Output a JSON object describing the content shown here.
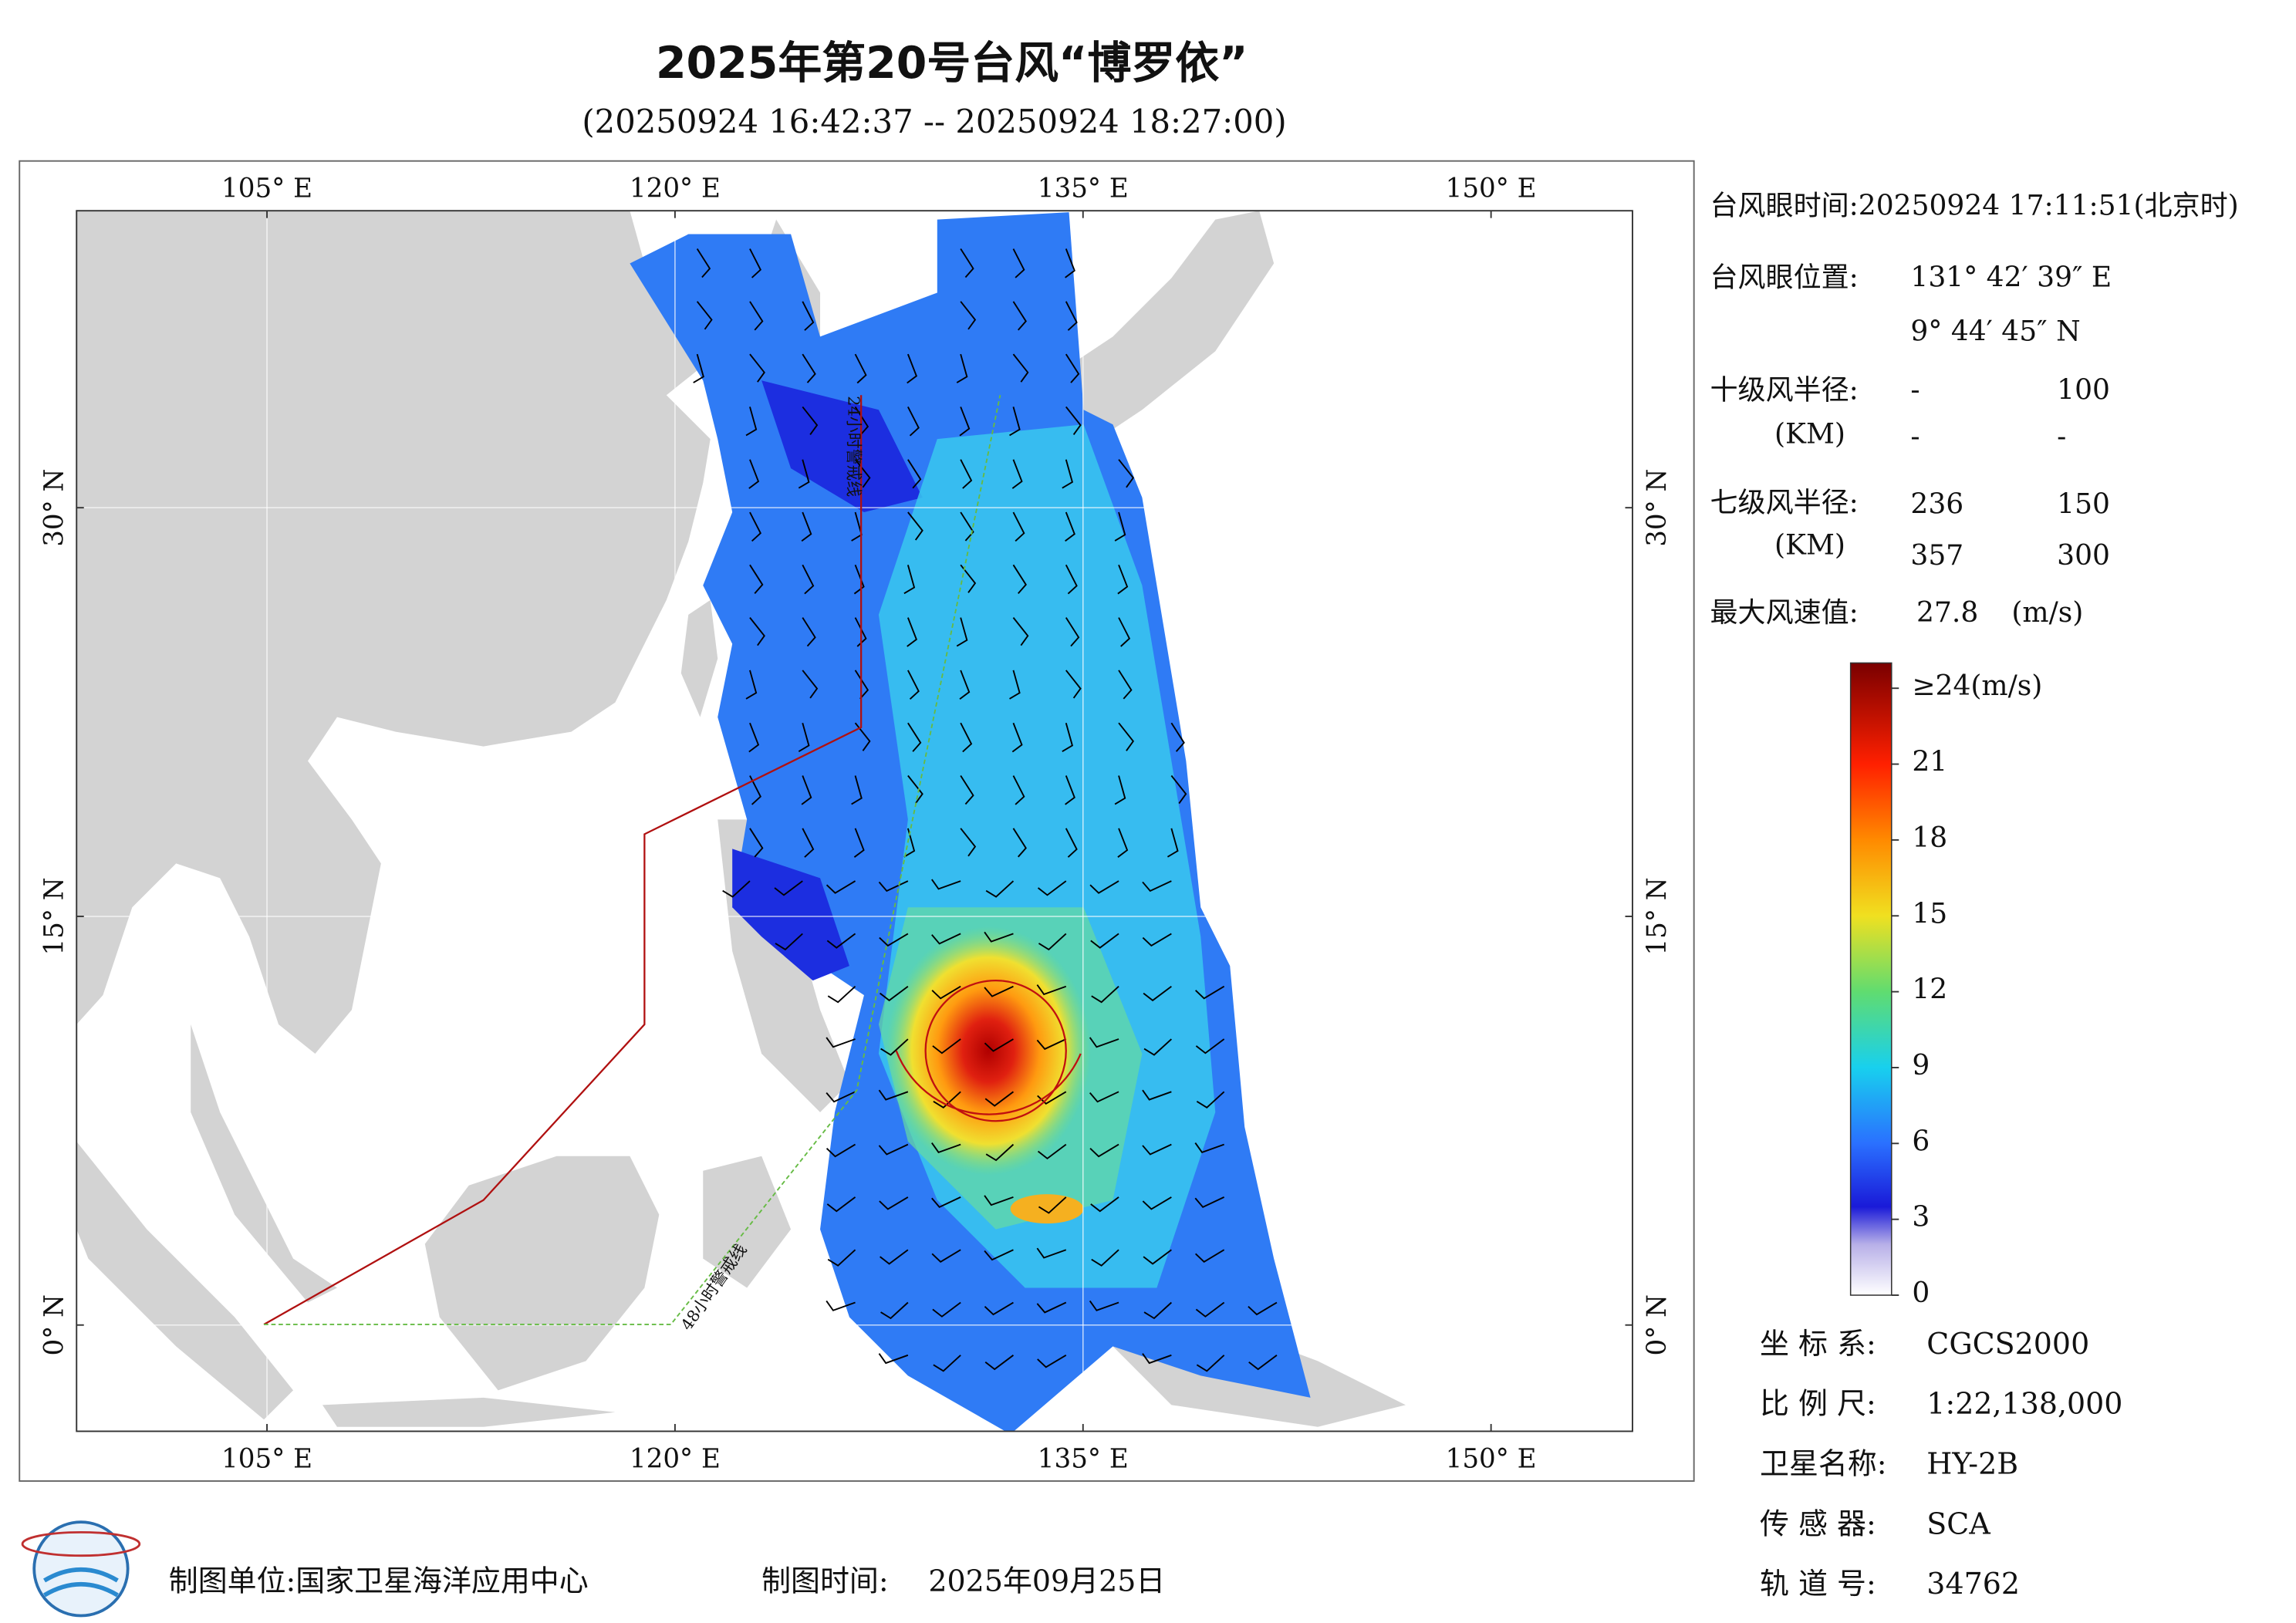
{
  "header": {
    "title": "2025年第20号台风“博罗依”",
    "subtitle": "(20250924 16:42:37 -- 20250924 18:27:00)"
  },
  "map": {
    "xlim": [
      98,
      155.2
    ],
    "ylim": [
      -3.9,
      40.9
    ],
    "xticks": [
      {
        "value": 105,
        "label": "105° E"
      },
      {
        "value": 120,
        "label": "120° E"
      },
      {
        "value": 135,
        "label": "135° E"
      },
      {
        "value": 150,
        "label": "150° E"
      }
    ],
    "yticks": [
      {
        "value": 0,
        "label": "0° N"
      },
      {
        "value": 15,
        "label": "15° N"
      },
      {
        "value": 30,
        "label": "30° N"
      }
    ],
    "annotations": [
      "24小时警戒线",
      "48小时警戒线"
    ]
  },
  "info": {
    "eye_time": "台风眼时间:20250924 17:11:51(北京时)",
    "eye_position_label": "台风眼位置:",
    "eye_lon": "131° 42′ 39″ E",
    "eye_lat": "9° 44′ 45″ N",
    "r10_label": "十级风半径:",
    "r10_unit": "(KM)",
    "r10": [
      [
        "-",
        100
      ],
      [
        "-",
        "-"
      ]
    ],
    "r7_label": "七级风半径:",
    "r7_unit": "(KM)",
    "r7": [
      [
        236,
        150
      ],
      [
        357,
        300
      ]
    ],
    "max_wind_label": "最大风速值:",
    "max_wind": 27.8,
    "max_wind_unit": "(m/s)"
  },
  "colorbar": {
    "lim": [
      0,
      25
    ],
    "ticks": [
      0,
      3,
      6,
      9,
      12,
      15,
      18,
      21,
      {
        "value": 24,
        "label": "≥24(m/s)"
      }
    ]
  },
  "metadata": [
    {
      "label": "坐 标 系:",
      "value": "CGCS2000"
    },
    {
      "label": "比 例 尺:",
      "value": "1:22,138,000"
    },
    {
      "label": "卫星名称:",
      "value": "HY-2B"
    },
    {
      "label": "传 感 器:",
      "value": "SCA"
    },
    {
      "label": "轨 道 号:",
      "value": 34762
    }
  ],
  "footer": {
    "unit": "制图单位:国家卫星海洋应用中心",
    "time_label": "制图时间:",
    "time": "2025年09月25日"
  }
}
